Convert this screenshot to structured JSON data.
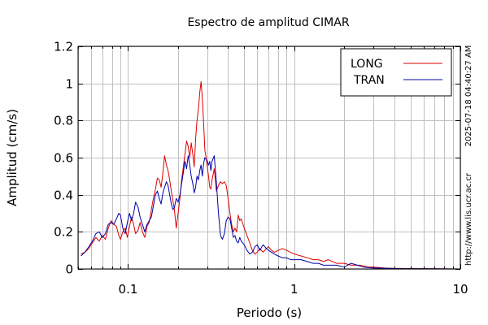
{
  "chart_data": {
    "type": "line",
    "title": "Espectro de amplitud CIMAR",
    "xlabel": "Periodo (s)",
    "ylabel": "Amplitud (cm/s)",
    "x_scale": "log",
    "xlim": [
      0.05,
      10
    ],
    "ylim": [
      0,
      1.2
    ],
    "x_tick_labels": [
      {
        "value": 0.1,
        "label": "0.1"
      },
      {
        "value": 1,
        "label": "1"
      },
      {
        "value": 10,
        "label": "10"
      }
    ],
    "y_tick_labels": [
      {
        "value": 0,
        "label": "0"
      },
      {
        "value": 0.2,
        "label": "0.2"
      },
      {
        "value": 0.4,
        "label": "0.4"
      },
      {
        "value": 0.6,
        "label": "0.6"
      },
      {
        "value": 0.8,
        "label": "0.8"
      },
      {
        "value": 1.0,
        "label": "1"
      },
      {
        "value": 1.2,
        "label": "1.2"
      }
    ],
    "grid": true,
    "legend_position": "top-right",
    "series": [
      {
        "name": "LONG",
        "color": "#dd0000",
        "points": [
          [
            0.052,
            0.08
          ],
          [
            0.055,
            0.09
          ],
          [
            0.058,
            0.11
          ],
          [
            0.061,
            0.14
          ],
          [
            0.064,
            0.17
          ],
          [
            0.067,
            0.15
          ],
          [
            0.07,
            0.18
          ],
          [
            0.073,
            0.16
          ],
          [
            0.076,
            0.22
          ],
          [
            0.079,
            0.26
          ],
          [
            0.082,
            0.24
          ],
          [
            0.085,
            0.23
          ],
          [
            0.088,
            0.18
          ],
          [
            0.09,
            0.16
          ],
          [
            0.093,
            0.2
          ],
          [
            0.096,
            0.22
          ],
          [
            0.099,
            0.17
          ],
          [
            0.102,
            0.23
          ],
          [
            0.105,
            0.28
          ],
          [
            0.108,
            0.24
          ],
          [
            0.111,
            0.19
          ],
          [
            0.115,
            0.21
          ],
          [
            0.118,
            0.25
          ],
          [
            0.122,
            0.2
          ],
          [
            0.126,
            0.17
          ],
          [
            0.13,
            0.23
          ],
          [
            0.134,
            0.25
          ],
          [
            0.138,
            0.32
          ],
          [
            0.142,
            0.38
          ],
          [
            0.146,
            0.43
          ],
          [
            0.15,
            0.49
          ],
          [
            0.154,
            0.48
          ],
          [
            0.158,
            0.44
          ],
          [
            0.162,
            0.52
          ],
          [
            0.166,
            0.61
          ],
          [
            0.17,
            0.56
          ],
          [
            0.174,
            0.53
          ],
          [
            0.178,
            0.48
          ],
          [
            0.182,
            0.42
          ],
          [
            0.186,
            0.37
          ],
          [
            0.19,
            0.32
          ],
          [
            0.195,
            0.22
          ],
          [
            0.2,
            0.3
          ],
          [
            0.205,
            0.38
          ],
          [
            0.21,
            0.48
          ],
          [
            0.215,
            0.55
          ],
          [
            0.22,
            0.62
          ],
          [
            0.225,
            0.69
          ],
          [
            0.23,
            0.66
          ],
          [
            0.235,
            0.6
          ],
          [
            0.24,
            0.68
          ],
          [
            0.245,
            0.62
          ],
          [
            0.25,
            0.55
          ],
          [
            0.255,
            0.7
          ],
          [
            0.26,
            0.8
          ],
          [
            0.265,
            0.86
          ],
          [
            0.27,
            0.95
          ],
          [
            0.275,
            1.01
          ],
          [
            0.28,
            0.92
          ],
          [
            0.285,
            0.78
          ],
          [
            0.29,
            0.64
          ],
          [
            0.295,
            0.6
          ],
          [
            0.3,
            0.55
          ],
          [
            0.305,
            0.5
          ],
          [
            0.31,
            0.44
          ],
          [
            0.315,
            0.43
          ],
          [
            0.32,
            0.48
          ],
          [
            0.33,
            0.54
          ],
          [
            0.34,
            0.42
          ],
          [
            0.35,
            0.45
          ],
          [
            0.36,
            0.47
          ],
          [
            0.37,
            0.46
          ],
          [
            0.38,
            0.47
          ],
          [
            0.39,
            0.45
          ],
          [
            0.4,
            0.38
          ],
          [
            0.41,
            0.3
          ],
          [
            0.42,
            0.24
          ],
          [
            0.43,
            0.2
          ],
          [
            0.44,
            0.22
          ],
          [
            0.45,
            0.2
          ],
          [
            0.46,
            0.29
          ],
          [
            0.47,
            0.26
          ],
          [
            0.48,
            0.27
          ],
          [
            0.5,
            0.22
          ],
          [
            0.52,
            0.18
          ],
          [
            0.54,
            0.14
          ],
          [
            0.56,
            0.1
          ],
          [
            0.58,
            0.08
          ],
          [
            0.6,
            0.09
          ],
          [
            0.62,
            0.11
          ],
          [
            0.65,
            0.09
          ],
          [
            0.68,
            0.11
          ],
          [
            0.7,
            0.12
          ],
          [
            0.73,
            0.1
          ],
          [
            0.76,
            0.09
          ],
          [
            0.8,
            0.1
          ],
          [
            0.85,
            0.11
          ],
          [
            0.9,
            0.1
          ],
          [
            0.95,
            0.09
          ],
          [
            1.0,
            0.08
          ],
          [
            1.1,
            0.07
          ],
          [
            1.2,
            0.06
          ],
          [
            1.3,
            0.05
          ],
          [
            1.4,
            0.05
          ],
          [
            1.5,
            0.04
          ],
          [
            1.6,
            0.05
          ],
          [
            1.7,
            0.04
          ],
          [
            1.8,
            0.03
          ],
          [
            2.0,
            0.03
          ],
          [
            2.2,
            0.02
          ],
          [
            2.5,
            0.02
          ],
          [
            2.8,
            0.01
          ],
          [
            3.0,
            0.01
          ],
          [
            3.5,
            0.005
          ],
          [
            4.0,
            0.003
          ],
          [
            5.0,
            0.002
          ],
          [
            7.0,
            0.001
          ],
          [
            10.0,
            0.0
          ]
        ]
      },
      {
        "name": "TRAN",
        "color": "#0000aa",
        "points": [
          [
            0.052,
            0.07
          ],
          [
            0.055,
            0.09
          ],
          [
            0.058,
            0.12
          ],
          [
            0.061,
            0.15
          ],
          [
            0.064,
            0.19
          ],
          [
            0.067,
            0.2
          ],
          [
            0.07,
            0.17
          ],
          [
            0.073,
            0.19
          ],
          [
            0.076,
            0.24
          ],
          [
            0.079,
            0.25
          ],
          [
            0.082,
            0.24
          ],
          [
            0.085,
            0.27
          ],
          [
            0.088,
            0.3
          ],
          [
            0.09,
            0.29
          ],
          [
            0.093,
            0.22
          ],
          [
            0.096,
            0.19
          ],
          [
            0.099,
            0.25
          ],
          [
            0.102,
            0.3
          ],
          [
            0.105,
            0.26
          ],
          [
            0.108,
            0.3
          ],
          [
            0.111,
            0.36
          ],
          [
            0.115,
            0.33
          ],
          [
            0.118,
            0.28
          ],
          [
            0.122,
            0.24
          ],
          [
            0.126,
            0.2
          ],
          [
            0.13,
            0.24
          ],
          [
            0.134,
            0.26
          ],
          [
            0.138,
            0.28
          ],
          [
            0.142,
            0.34
          ],
          [
            0.146,
            0.4
          ],
          [
            0.15,
            0.42
          ],
          [
            0.154,
            0.38
          ],
          [
            0.158,
            0.35
          ],
          [
            0.162,
            0.41
          ],
          [
            0.166,
            0.44
          ],
          [
            0.17,
            0.47
          ],
          [
            0.174,
            0.45
          ],
          [
            0.178,
            0.4
          ],
          [
            0.182,
            0.35
          ],
          [
            0.186,
            0.32
          ],
          [
            0.19,
            0.33
          ],
          [
            0.195,
            0.38
          ],
          [
            0.2,
            0.36
          ],
          [
            0.205,
            0.4
          ],
          [
            0.21,
            0.46
          ],
          [
            0.215,
            0.52
          ],
          [
            0.22,
            0.58
          ],
          [
            0.225,
            0.54
          ],
          [
            0.23,
            0.61
          ],
          [
            0.235,
            0.56
          ],
          [
            0.24,
            0.5
          ],
          [
            0.245,
            0.46
          ],
          [
            0.25,
            0.41
          ],
          [
            0.255,
            0.44
          ],
          [
            0.26,
            0.5
          ],
          [
            0.265,
            0.48
          ],
          [
            0.27,
            0.53
          ],
          [
            0.275,
            0.56
          ],
          [
            0.28,
            0.5
          ],
          [
            0.285,
            0.57
          ],
          [
            0.29,
            0.6
          ],
          [
            0.295,
            0.59
          ],
          [
            0.3,
            0.58
          ],
          [
            0.305,
            0.56
          ],
          [
            0.31,
            0.58
          ],
          [
            0.315,
            0.53
          ],
          [
            0.32,
            0.58
          ],
          [
            0.33,
            0.61
          ],
          [
            0.34,
            0.47
          ],
          [
            0.35,
            0.3
          ],
          [
            0.36,
            0.18
          ],
          [
            0.37,
            0.16
          ],
          [
            0.38,
            0.19
          ],
          [
            0.39,
            0.26
          ],
          [
            0.4,
            0.28
          ],
          [
            0.41,
            0.27
          ],
          [
            0.42,
            0.22
          ],
          [
            0.43,
            0.17
          ],
          [
            0.44,
            0.18
          ],
          [
            0.45,
            0.15
          ],
          [
            0.46,
            0.14
          ],
          [
            0.47,
            0.17
          ],
          [
            0.48,
            0.15
          ],
          [
            0.5,
            0.13
          ],
          [
            0.52,
            0.1
          ],
          [
            0.54,
            0.08
          ],
          [
            0.56,
            0.09
          ],
          [
            0.58,
            0.12
          ],
          [
            0.6,
            0.13
          ],
          [
            0.62,
            0.1
          ],
          [
            0.65,
            0.13
          ],
          [
            0.68,
            0.11
          ],
          [
            0.7,
            0.1
          ],
          [
            0.73,
            0.09
          ],
          [
            0.76,
            0.08
          ],
          [
            0.8,
            0.07
          ],
          [
            0.85,
            0.06
          ],
          [
            0.9,
            0.06
          ],
          [
            0.95,
            0.05
          ],
          [
            1.0,
            0.05
          ],
          [
            1.1,
            0.05
          ],
          [
            1.2,
            0.04
          ],
          [
            1.3,
            0.03
          ],
          [
            1.4,
            0.03
          ],
          [
            1.5,
            0.02
          ],
          [
            1.6,
            0.02
          ],
          [
            1.8,
            0.02
          ],
          [
            2.0,
            0.01
          ],
          [
            2.2,
            0.03
          ],
          [
            2.4,
            0.02
          ],
          [
            2.6,
            0.01
          ],
          [
            3.0,
            0.005
          ],
          [
            3.5,
            0.004
          ],
          [
            4.0,
            0.002
          ],
          [
            5.0,
            0.001
          ],
          [
            7.0,
            0.001
          ],
          [
            10.0,
            0.0
          ]
        ]
      }
    ]
  },
  "side_notes": {
    "timestamp": "2025-07-18 04:40:27 AM",
    "url": "http://www.lis.ucr.ac.cr"
  }
}
